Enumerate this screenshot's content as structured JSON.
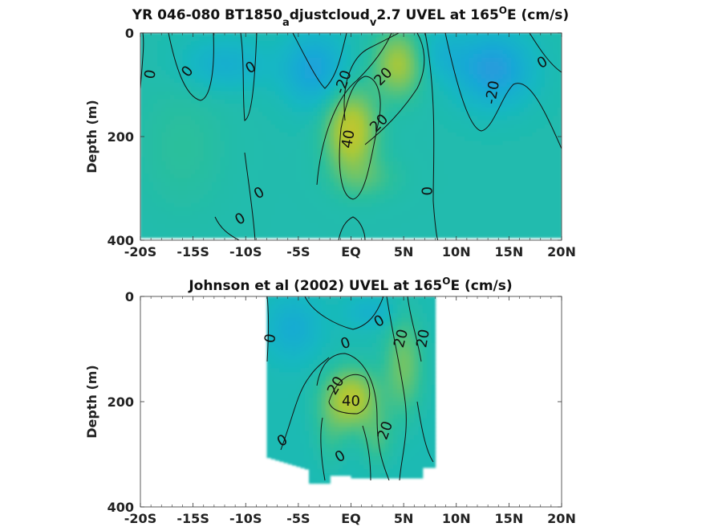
{
  "chart_data": [
    {
      "type": "heatmap",
      "title_main": "YR 046-080 BT1850",
      "title_sub1": "a",
      "title_mid": "djustcloud",
      "title_sub2": "v",
      "title_tail": "2.7 UVEL at 165",
      "title_sup": "O",
      "title_end": "E (cm/s)",
      "xlabel": "",
      "ylabel": "Depth (m)",
      "xlim": [
        -20,
        20
      ],
      "ylim": [
        0,
        400
      ],
      "y_inverted": true,
      "x_ticks": [
        -20,
        -15,
        -10,
        -5,
        0,
        5,
        10,
        15,
        20
      ],
      "x_tick_labels": [
        "-20S",
        "-15S",
        "-10S",
        "-5S",
        "EQ",
        "5N",
        "10N",
        "15N",
        "20N"
      ],
      "y_ticks": [
        0,
        200,
        400
      ],
      "y_tick_labels": [
        "0",
        "200",
        "400"
      ],
      "colorscale": [
        "#3b8fe0",
        "#1aa6d8",
        "#13b7c3",
        "#2bbf9c",
        "#6cc46b",
        "#a7c83a",
        "#c9c52a"
      ],
      "value_range": [
        -30,
        50
      ],
      "field_model": "tropical zonal velocity section: eastward subsurface core near equator, westward flow off-equator",
      "contour_labels": [
        {
          "text": "0",
          "lat": -19,
          "depth": 80,
          "rot": -80
        },
        {
          "text": "0",
          "lat": -15.5,
          "depth": 75,
          "rot": -50
        },
        {
          "text": "0",
          "lat": -9.5,
          "depth": 68,
          "rot": -30
        },
        {
          "text": "-20",
          "lat": -0.7,
          "depth": 95,
          "rot": -70
        },
        {
          "text": "20",
          "lat": 3.1,
          "depth": 85,
          "rot": -45
        },
        {
          "text": "40",
          "lat": -0.2,
          "depth": 205,
          "rot": -80
        },
        {
          "text": "20",
          "lat": 2.7,
          "depth": 175,
          "rot": -45
        },
        {
          "text": "-20",
          "lat": 13.5,
          "depth": 115,
          "rot": -80
        },
        {
          "text": "0",
          "lat": 18.2,
          "depth": 58,
          "rot": -30
        },
        {
          "text": "0",
          "lat": 7.3,
          "depth": 305,
          "rot": -90
        },
        {
          "text": "0",
          "lat": -8.7,
          "depth": 310,
          "rot": -30
        },
        {
          "text": "0",
          "lat": -10.5,
          "depth": 360,
          "rot": -30
        }
      ]
    },
    {
      "type": "heatmap",
      "title_main": "Johnson et al (2002) UVEL at 165",
      "title_sup": "O",
      "title_end": "E (cm/s)",
      "xlabel": "",
      "ylabel": "Depth (m)",
      "xlim": [
        -20,
        20
      ],
      "ylim": [
        0,
        400
      ],
      "y_inverted": true,
      "data_lat_range": [
        -8,
        8
      ],
      "x_ticks": [
        -20,
        -15,
        -10,
        -5,
        0,
        5,
        10,
        15,
        20
      ],
      "x_tick_labels": [
        "-20S",
        "-15S",
        "-10S",
        "-5S",
        "EQ",
        "5N",
        "10N",
        "15N",
        "20N"
      ],
      "y_ticks": [
        0,
        200,
        400
      ],
      "y_tick_labels": [
        "0",
        "200",
        "400"
      ],
      "colorscale": [
        "#3b8fe0",
        "#1aa6d8",
        "#13b7c3",
        "#2bbf9c",
        "#6cc46b",
        "#a7c83a",
        "#c9c52a"
      ],
      "value_range": [
        -30,
        50
      ],
      "contour_labels": [
        {
          "text": "0",
          "lat": -7.6,
          "depth": 80,
          "rot": -80
        },
        {
          "text": "0",
          "lat": -0.5,
          "depth": 90,
          "rot": -20
        },
        {
          "text": "0",
          "lat": 2.7,
          "depth": 48,
          "rot": -30
        },
        {
          "text": "20",
          "lat": 4.8,
          "depth": 80,
          "rot": -75
        },
        {
          "text": "20",
          "lat": 6.9,
          "depth": 80,
          "rot": -80
        },
        {
          "text": "20",
          "lat": -1.4,
          "depth": 170,
          "rot": -60
        },
        {
          "text": "40",
          "lat": 0,
          "depth": 200,
          "rot": 0
        },
        {
          "text": "20",
          "lat": 3.3,
          "depth": 255,
          "rot": -70
        },
        {
          "text": "0",
          "lat": -6.5,
          "depth": 275,
          "rot": -30
        },
        {
          "text": "0",
          "lat": -1,
          "depth": 305,
          "rot": -30
        }
      ]
    }
  ]
}
